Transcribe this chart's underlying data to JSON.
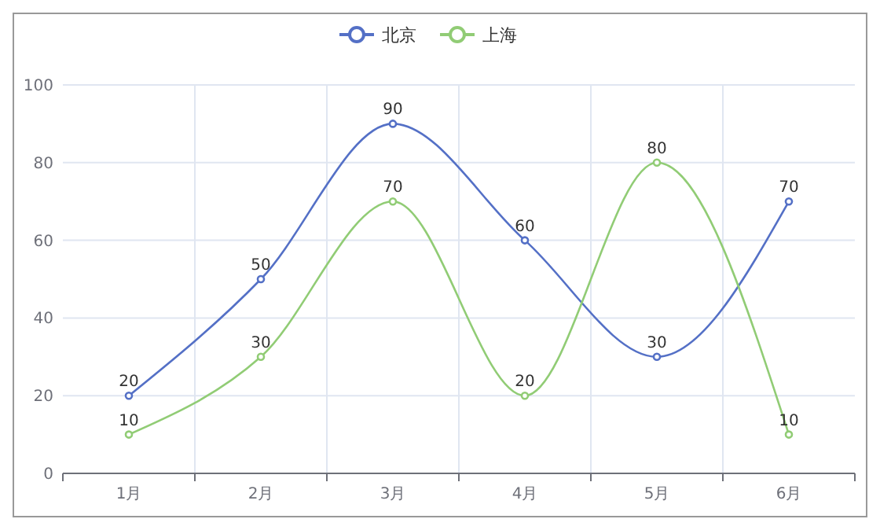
{
  "chart_data": {
    "type": "line",
    "categories": [
      "1月",
      "2月",
      "3月",
      "4月",
      "5月",
      "6月"
    ],
    "series": [
      {
        "name": "北京",
        "color": "#5470c6",
        "values": [
          20,
          50,
          90,
          60,
          30,
          70
        ]
      },
      {
        "name": "上海",
        "color": "#91cc75",
        "values": [
          10,
          30,
          70,
          20,
          80,
          10
        ]
      }
    ],
    "ylim": [
      0,
      100
    ],
    "yticks": [
      0,
      20,
      40,
      60,
      80,
      100
    ],
    "grid": true,
    "legend": "top",
    "marker": "circle",
    "data_labels": true
  }
}
